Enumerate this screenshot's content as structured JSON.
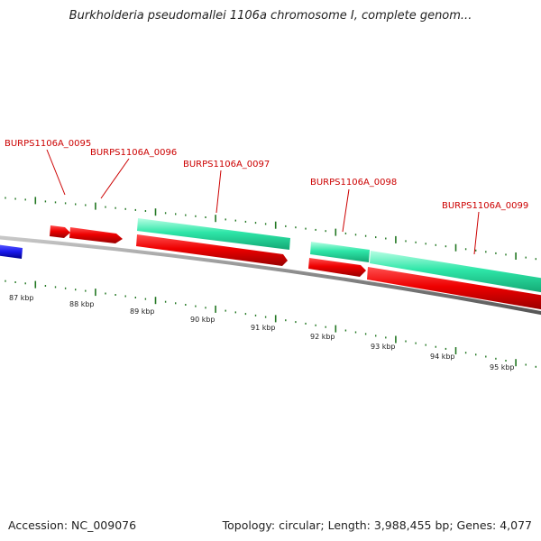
{
  "title": "Burkholderia pseudomallei 1106a chromosome I, complete genom...",
  "footer": {
    "accession": "Accession: NC_009076",
    "summary": "Topology: circular; Length: 3,988,455 bp; Genes: 4,077"
  },
  "scale_labels": [
    "87 kbp",
    "88 kbp",
    "89 kbp",
    "90 kbp",
    "91 kbp",
    "92 kbp",
    "93 kbp",
    "94 kbp",
    "95 kbp"
  ],
  "gene_labels": [
    "BURPS1106A_0095",
    "BURPS1106A_0096",
    "BURPS1106A_0097",
    "BURPS1106A_0098",
    "BURPS1106A_0099"
  ],
  "colors": {
    "backbone": "#808080",
    "forward_gene": "#22e0a0",
    "reverse_gene": "#ee0000",
    "other_feature": "#1a1aee",
    "tick": "#227722",
    "label": "#cc0000"
  }
}
